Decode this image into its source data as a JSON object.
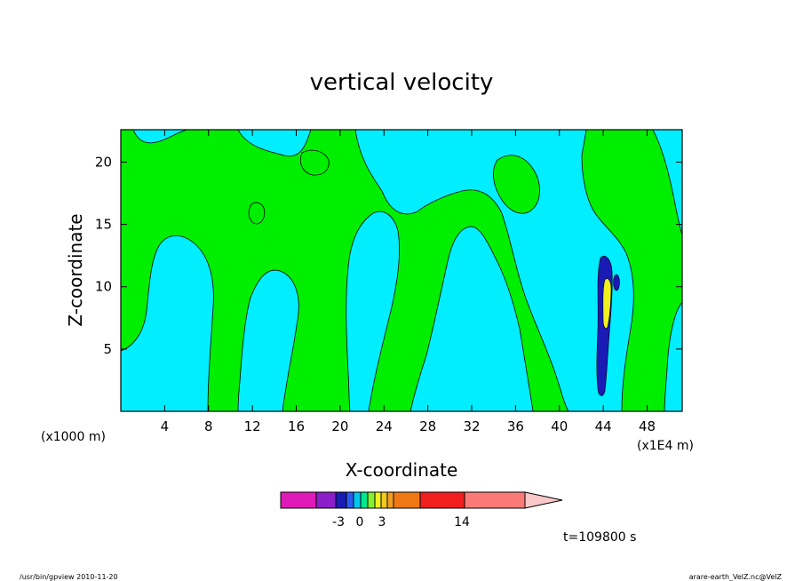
{
  "chart_data": {
    "type": "heatmap",
    "title": "vertical velocity",
    "xlabel": "X-coordinate",
    "ylabel": "Z-coordinate",
    "x_unit_left": "(x1000 m)",
    "x_unit_right": "(x1E4 m)",
    "x_ticks": [
      "4",
      "8",
      "12",
      "16",
      "20",
      "24",
      "28",
      "32",
      "36",
      "40",
      "44",
      "48"
    ],
    "y_ticks": [
      "5",
      "10",
      "15",
      "20"
    ],
    "xlim": [
      0,
      51.2
    ],
    "ylim": [
      0,
      22.6
    ],
    "colorbar": {
      "colors": [
        "#e01ab8",
        "#8a1ec8",
        "#1a1ab4",
        "#2a5cf0",
        "#00c8f0",
        "#00e68c",
        "#82f02e",
        "#f0f01e",
        "#f0c81e",
        "#f0a01e",
        "#f07814",
        "#f01e1e",
        "#fa7a78",
        "#fac8c8"
      ],
      "tick_labels": [
        "-3",
        "0",
        "3",
        "14"
      ]
    },
    "time_label": "t=109800 s",
    "colors": {
      "positive_weak": "#00ee00",
      "negative_weak": "#00eeff",
      "negative_strong": "#1a1ab4",
      "positive_strong": "#f0f01e"
    }
  },
  "footer": {
    "left": "/usr/bin/gpview   2010-11-20",
    "right": "arare-earth_VelZ.nc@VelZ"
  }
}
